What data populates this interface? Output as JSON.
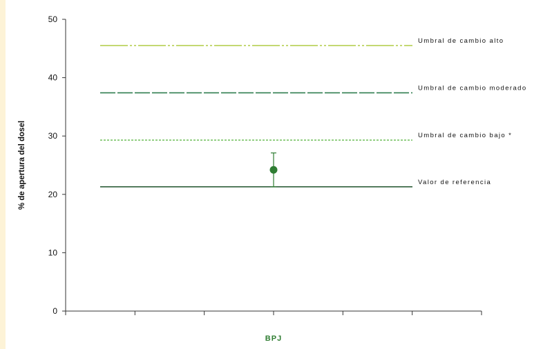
{
  "chart_data": {
    "type": "scatter",
    "title": "",
    "xlabel": "BPJ",
    "ylabel": "% de apertura del dosel",
    "ylim": [
      0,
      50
    ],
    "yticks": [
      0,
      10,
      20,
      30,
      40,
      50
    ],
    "grid": false,
    "points": [
      {
        "name": "BPJ",
        "y": 24.2,
        "err_low": 21.3,
        "err_high": 27.1,
        "color": "#2e7d32"
      }
    ],
    "reference_lines": [
      {
        "label": "Umbral de cambio alto",
        "y": 45.5,
        "color": "#b5cf52",
        "style": "dash-dot-dot"
      },
      {
        "label": "Umbral de cambio moderado",
        "y": 37.4,
        "color": "#2e7d4f",
        "style": "long-dash"
      },
      {
        "label": "Umbral de cambio bajo *",
        "y": 29.3,
        "color": "#6fbf5a",
        "style": "dotted"
      },
      {
        "label": "Valor de referencia",
        "y": 21.3,
        "color": "#2e5e3a",
        "style": "solid"
      }
    ]
  }
}
